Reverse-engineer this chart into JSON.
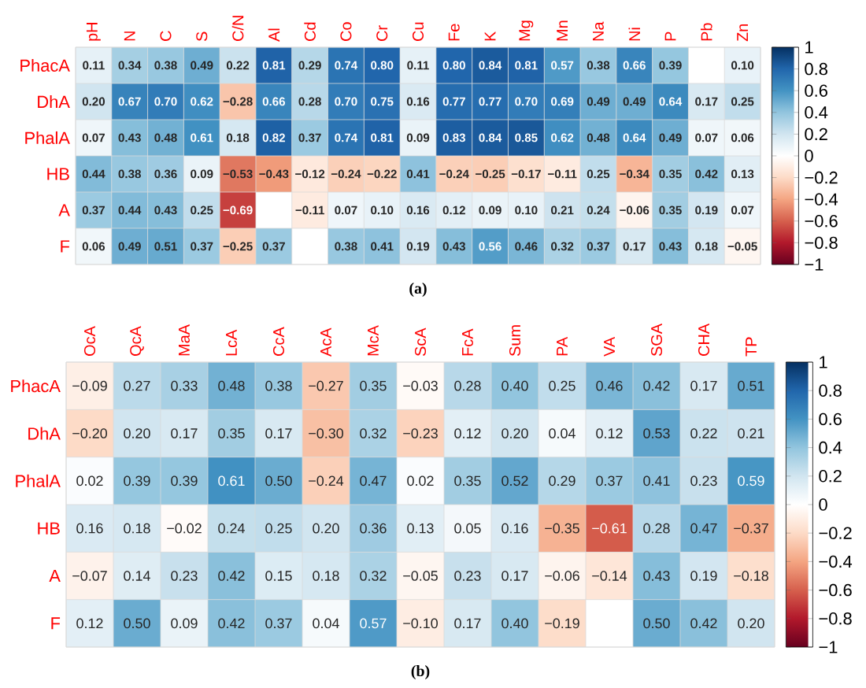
{
  "chart_data": [
    {
      "type": "heatmap",
      "categories": [
        "pH",
        "N",
        "C",
        "S",
        "C/N",
        "Al",
        "Cd",
        "Co",
        "Cr",
        "Cu",
        "Fe",
        "K",
        "Mg",
        "Mn",
        "Na",
        "Ni",
        "P",
        "Pb",
        "Zn"
      ],
      "y_categories": [
        "PhacA",
        "DhA",
        "PhalA",
        "HB",
        "A",
        "F"
      ],
      "cells": [
        [
          0.11,
          0.34,
          0.38,
          0.49,
          0.22,
          0.81,
          0.29,
          0.74,
          0.8,
          0.11,
          0.8,
          0.84,
          0.81,
          0.57,
          0.38,
          0.66,
          0.39,
          null,
          0.1
        ],
        [
          0.2,
          0.67,
          0.7,
          0.62,
          -0.28,
          0.66,
          0.28,
          0.7,
          0.75,
          0.16,
          0.77,
          0.77,
          0.7,
          0.69,
          0.49,
          0.49,
          0.64,
          0.17,
          0.25
        ],
        [
          0.07,
          0.43,
          0.48,
          0.61,
          0.18,
          0.82,
          0.37,
          0.74,
          0.81,
          0.09,
          0.83,
          0.84,
          0.85,
          0.62,
          0.48,
          0.64,
          0.49,
          0.07,
          0.06
        ],
        [
          0.44,
          0.38,
          0.36,
          0.09,
          -0.53,
          -0.43,
          -0.12,
          -0.24,
          -0.22,
          0.41,
          -0.24,
          -0.25,
          -0.17,
          -0.11,
          0.25,
          -0.34,
          0.35,
          0.42,
          0.13
        ],
        [
          0.37,
          0.44,
          0.43,
          0.25,
          -0.69,
          null,
          -0.11,
          0.07,
          0.1,
          0.16,
          0.12,
          0.09,
          0.1,
          0.21,
          0.24,
          -0.06,
          0.35,
          0.19,
          0.07
        ],
        [
          0.06,
          0.49,
          0.51,
          0.37,
          -0.25,
          0.37,
          null,
          0.38,
          0.41,
          0.19,
          0.43,
          0.56,
          0.46,
          0.32,
          0.37,
          0.17,
          0.43,
          0.18,
          -0.05
        ]
      ],
      "cell_labels": [
        [
          "0.11",
          "0.34",
          "0.38",
          "0.49",
          "0.22",
          "0.81",
          "0.29",
          "0.74",
          "0.80",
          "0.11",
          "0.80",
          "0.84",
          "0.81",
          "0.57",
          "0.38",
          "0.66",
          "0.39",
          null,
          "0.10"
        ],
        [
          "0.20",
          "0.67",
          "0.70",
          "0.62",
          "−0.28",
          "0.66",
          "0.28",
          "0.70",
          "0.75",
          "0.16",
          "0.77",
          "0.77",
          "0.70",
          "0.69",
          "0.49",
          "0.49",
          "0.64",
          "0.17",
          "0.25"
        ],
        [
          "0.07",
          "0.43",
          "0.48",
          "0.61",
          "0.18",
          "0.82",
          "0.37",
          "0.74",
          "0.81",
          "0.09",
          "0.83",
          "0.84",
          "0.85",
          "0.62",
          "0.48",
          "0.64",
          "0.49",
          "0.07",
          "0.06"
        ],
        [
          "0.44",
          "0.38",
          "0.36",
          "0.09",
          "−0.53",
          "−0.43",
          "−0.12",
          "−0.24",
          "−0.22",
          "0.41",
          "−0.24",
          "−0.25",
          "−0.17",
          "−0.11",
          "0.25",
          "−0.34",
          "0.35",
          "0.42",
          "0.13"
        ],
        [
          "0.37",
          "0.44",
          "0.43",
          "0.25",
          "−0.69",
          null,
          "−0.11",
          "0.07",
          "0.10",
          "0.16",
          "0.12",
          "0.09",
          "0.10",
          "0.21",
          "0.24",
          "−0.06",
          "0.35",
          "0.19",
          "0.07"
        ],
        [
          "0.06",
          "0.49",
          "0.51",
          "0.37",
          "−0.25",
          "0.37",
          null,
          "0.38",
          "0.41",
          "0.19",
          "0.43",
          "0.56",
          "0.46",
          "0.32",
          "0.37",
          "0.17",
          "0.43",
          "0.18",
          "−0.05"
        ]
      ],
      "clim": [
        -1,
        1
      ],
      "cticks": [
        {
          "value": -1,
          "label": "−1"
        },
        {
          "value": -0.8,
          "label": "−0.8"
        },
        {
          "value": -0.6,
          "label": "−0.6"
        },
        {
          "value": -0.4,
          "label": "−0.4"
        },
        {
          "value": -0.2,
          "label": "−0.2"
        },
        0,
        0.2,
        0.4,
        0.6,
        0.8,
        1
      ],
      "colors": [
        "#67001f",
        "#b2182b",
        "#d6604d",
        "#f4a582",
        "#fddbc7",
        "#ffffff",
        "#d1e5f0",
        "#92c5de",
        "#4393c3",
        "#2166ac",
        "#053061"
      ],
      "annotations": [
        "(a)"
      ]
    },
    {
      "type": "heatmap",
      "categories": [
        "OcA",
        "QcA",
        "MaA",
        "LcA",
        "CcA",
        "AcA",
        "McA",
        "ScA",
        "FcA",
        "Sum",
        "PA",
        "VA",
        "SGA",
        "CHA",
        "TP"
      ],
      "y_categories": [
        "PhacA",
        "DhA",
        "PhalA",
        "HB",
        "A",
        "F"
      ],
      "cells": [
        [
          -0.09,
          0.27,
          0.33,
          0.48,
          0.38,
          -0.27,
          0.35,
          -0.03,
          0.28,
          0.4,
          0.25,
          0.46,
          0.42,
          0.17,
          0.51
        ],
        [
          -0.2,
          0.2,
          0.17,
          0.35,
          0.17,
          -0.3,
          0.32,
          -0.23,
          0.12,
          0.2,
          0.04,
          0.12,
          0.53,
          0.22,
          0.21
        ],
        [
          0.02,
          0.39,
          0.39,
          0.61,
          0.5,
          -0.24,
          0.47,
          0.02,
          0.35,
          0.52,
          0.29,
          0.37,
          0.41,
          0.23,
          0.59
        ],
        [
          0.16,
          0.18,
          -0.02,
          0.24,
          0.25,
          0.2,
          0.36,
          0.13,
          0.05,
          0.16,
          -0.35,
          -0.61,
          0.28,
          0.47,
          -0.37
        ],
        [
          -0.07,
          0.14,
          0.23,
          0.42,
          0.15,
          0.18,
          0.32,
          -0.05,
          0.23,
          0.17,
          -0.06,
          -0.14,
          0.43,
          0.19,
          -0.18
        ],
        [
          0.12,
          0.5,
          0.09,
          0.42,
          0.37,
          0.04,
          0.57,
          -0.1,
          0.17,
          0.4,
          -0.19,
          null,
          0.5,
          0.42,
          0.2
        ]
      ],
      "cell_labels": [
        [
          "−0.09",
          "0.27",
          "0.33",
          "0.48",
          "0.38",
          "−0.27",
          "0.35",
          "−0.03",
          "0.28",
          "0.40",
          "0.25",
          "0.46",
          "0.42",
          "0.17",
          "0.51"
        ],
        [
          "−0.20",
          "0.20",
          "0.17",
          "0.35",
          "0.17",
          "−0.30",
          "0.32",
          "−0.23",
          "0.12",
          "0.20",
          "0.04",
          "0.12",
          "0.53",
          "0.22",
          "0.21"
        ],
        [
          "0.02",
          "0.39",
          "0.39",
          "0.61",
          "0.50",
          "−0.24",
          "0.47",
          "0.02",
          "0.35",
          "0.52",
          "0.29",
          "0.37",
          "0.41",
          "0.23",
          "0.59"
        ],
        [
          "0.16",
          "0.18",
          "−0.02",
          "0.24",
          "0.25",
          "0.20",
          "0.36",
          "0.13",
          "0.05",
          "0.16",
          "−0.35",
          "−0.61",
          "0.28",
          "0.47",
          "−0.37"
        ],
        [
          "−0.07",
          "0.14",
          "0.23",
          "0.42",
          "0.15",
          "0.18",
          "0.32",
          "−0.05",
          "0.23",
          "0.17",
          "−0.06",
          "−0.14",
          "0.43",
          "0.19",
          "−0.18"
        ],
        [
          "0.12",
          "0.50",
          "0.09",
          "0.42",
          "0.37",
          "0.04",
          "0.57",
          "−0.10",
          "0.17",
          "0.40",
          "−0.19",
          null,
          "0.50",
          "0.42",
          "0.20"
        ]
      ],
      "clim": [
        -1,
        1
      ],
      "cticks": [
        {
          "value": -1,
          "label": "−1"
        },
        {
          "value": -0.8,
          "label": "−0.8"
        },
        {
          "value": -0.6,
          "label": "−0.6"
        },
        {
          "value": -0.4,
          "label": "−0.4"
        },
        {
          "value": -0.2,
          "label": "−0.2"
        },
        0,
        0.2,
        0.4,
        0.6,
        0.8,
        1
      ],
      "colors": [
        "#67001f",
        "#b2182b",
        "#d6604d",
        "#f4a582",
        "#fddbc7",
        "#ffffff",
        "#d1e5f0",
        "#92c5de",
        "#4393c3",
        "#2166ac",
        "#053061"
      ],
      "annotations": [
        "(b)"
      ]
    }
  ]
}
